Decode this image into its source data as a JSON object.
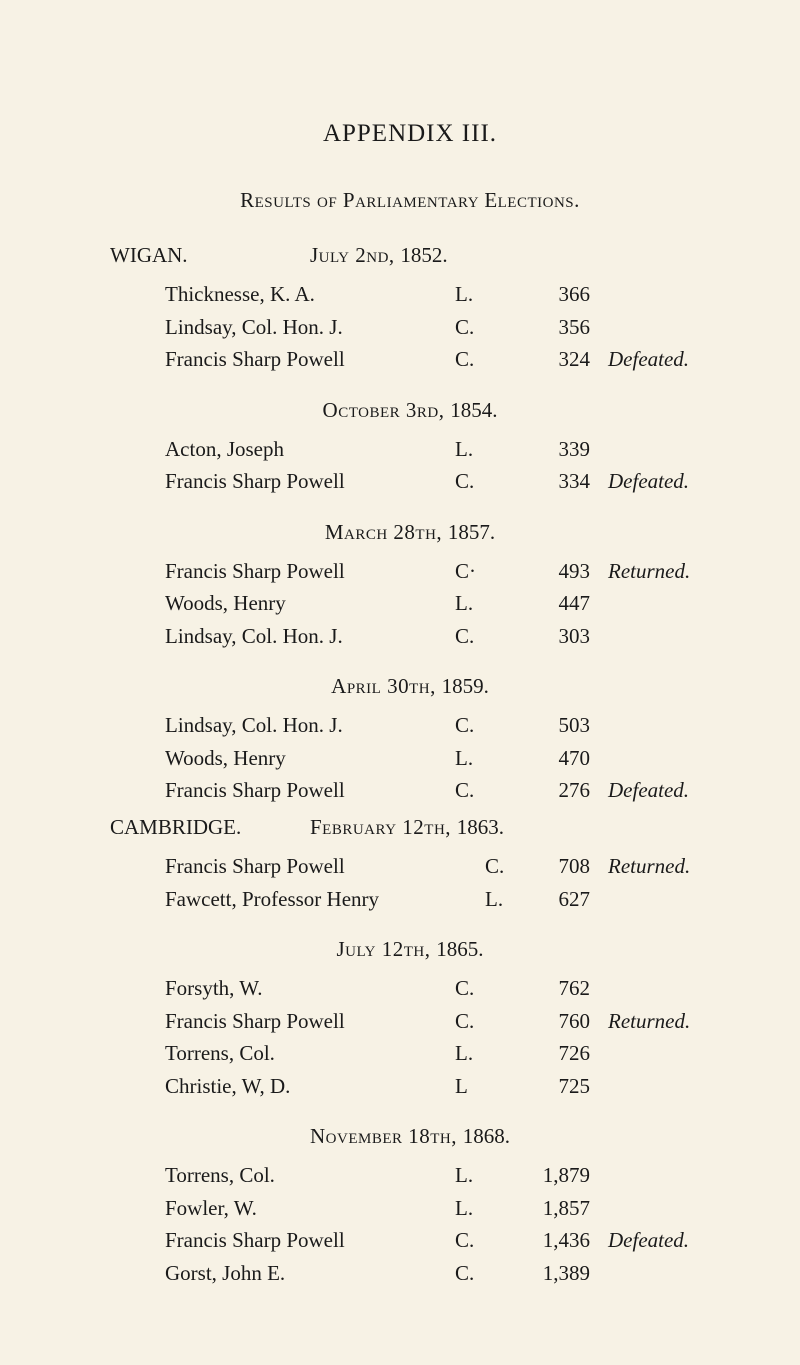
{
  "title": "APPENDIX  III.",
  "subtitle_a": "Results of Parliamentary",
  "subtitle_b": "Elections.",
  "sections": [
    {
      "location": "WIGAN.",
      "date_sc": "July 2nd, ",
      "date_year": "1852.",
      "rows": [
        {
          "name": "Thicknesse, K. A.",
          "party": "L.",
          "votes": "366",
          "status": ""
        },
        {
          "name": "Lindsay, Col. Hon. J.",
          "party": "C.",
          "votes": "356",
          "status": ""
        },
        {
          "name": "Francis Sharp Powell",
          "party": "C.",
          "votes": "324",
          "status": "Defeated."
        }
      ]
    },
    {
      "date_sc": "October 3rd, ",
      "date_year": "1854.",
      "rows": [
        {
          "name": "Acton, Joseph",
          "party": "L.",
          "votes": "339",
          "status": ""
        },
        {
          "name": "Francis Sharp Powell",
          "party": "C.",
          "votes": "334",
          "status": "Defeated."
        }
      ]
    },
    {
      "date_sc": "March 28th, ",
      "date_year": "1857.",
      "rows": [
        {
          "name": "Francis Sharp Powell",
          "party": "C·",
          "votes": "493",
          "status": "Returned."
        },
        {
          "name": "Woods, Henry",
          "party": "L.",
          "votes": "447",
          "status": ""
        },
        {
          "name": "Lindsay, Col. Hon. J.",
          "party": "C.",
          "votes": "303",
          "status": ""
        }
      ]
    },
    {
      "date_sc": "April 30th, ",
      "date_year": "1859.",
      "rows": [
        {
          "name": "Lindsay, Col. Hon. J.",
          "party": "C.",
          "votes": "503",
          "status": ""
        },
        {
          "name": "Woods, Henry",
          "party": "L.",
          "votes": "470",
          "status": ""
        },
        {
          "name": "Francis Sharp Powell",
          "party": "C.",
          "votes": "276",
          "status": "Defeated."
        }
      ]
    },
    {
      "location": "CAMBRIDGE.",
      "date_sc": "February 12th, ",
      "date_year": "1863.",
      "cambridge": true,
      "rows": [
        {
          "name": "Francis Sharp Powell",
          "party": "C.",
          "votes": "708",
          "status": "Returned."
        },
        {
          "name": "Fawcett, Professor Henry",
          "party": "L.",
          "votes": "627",
          "status": ""
        }
      ]
    },
    {
      "date_sc": "July 12th, ",
      "date_year": "1865.",
      "rows": [
        {
          "name": "Forsyth, W.",
          "party": "C.",
          "votes": "762",
          "status": ""
        },
        {
          "name": "Francis Sharp Powell",
          "party": "C.",
          "votes": "760",
          "status": "Returned."
        },
        {
          "name": "Torrens, Col.",
          "party": "L.",
          "votes": "726",
          "status": ""
        },
        {
          "name": "Christie, W, D.",
          "party": "L",
          "votes": "725",
          "status": ""
        }
      ]
    },
    {
      "date_sc": "November 18th, ",
      "date_year": "1868.",
      "rows": [
        {
          "name": "Torrens, Col.",
          "party": "L.",
          "votes": "1,879",
          "status": ""
        },
        {
          "name": "Fowler, W.",
          "party": "L.",
          "votes": "1,857",
          "status": ""
        },
        {
          "name": "Francis Sharp Powell",
          "party": "C.",
          "votes": "1,436",
          "status": "Defeated."
        },
        {
          "name": "Gorst, John E.",
          "party": "C.",
          "votes": "1,389",
          "status": ""
        }
      ]
    }
  ]
}
